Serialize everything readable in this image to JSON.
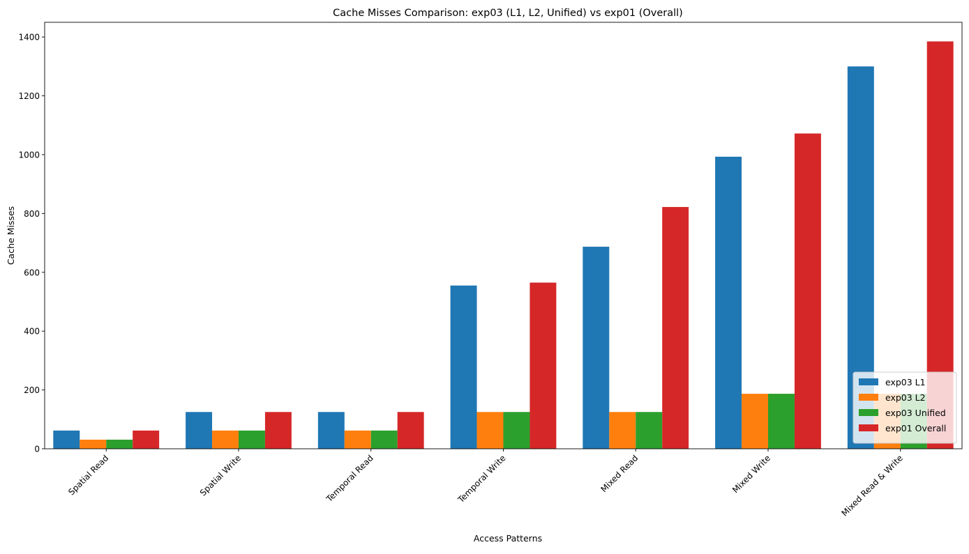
{
  "chart_data": {
    "type": "bar",
    "title": "Cache Misses Comparison: exp03 (L1, L2, Unified) vs exp01 (Overall)",
    "xlabel": "Access Patterns",
    "ylabel": "Cache Misses",
    "ylim": [
      0,
      1450
    ],
    "yticks": [
      "0",
      "200",
      "400",
      "600",
      "800",
      "1000",
      "1200",
      "1400"
    ],
    "grid": false,
    "legend_position": "lower-right",
    "categories": [
      "Spatial Read",
      "Spatial Write",
      "Temporal Read",
      "Temporal Write",
      "Mixed Read",
      "Mixed Write",
      "Mixed Read & Write"
    ],
    "series": [
      {
        "name": "exp03 L1",
        "color": "#1f77b4",
        "values": [
          62,
          125,
          125,
          555,
          687,
          993,
          1300
        ]
      },
      {
        "name": "exp03 L2",
        "color": "#ff7f0e",
        "values": [
          31,
          62,
          62,
          125,
          125,
          187,
          187
        ]
      },
      {
        "name": "exp03 Unified",
        "color": "#2ca02c",
        "values": [
          31,
          62,
          62,
          125,
          125,
          187,
          187
        ]
      },
      {
        "name": "exp01 Overall",
        "color": "#d62728",
        "values": [
          62,
          125,
          125,
          565,
          822,
          1072,
          1385
        ]
      }
    ]
  }
}
